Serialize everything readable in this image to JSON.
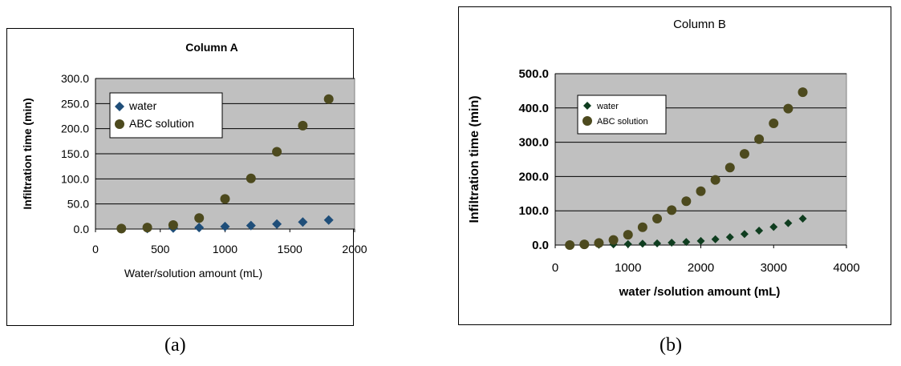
{
  "captions": [
    "(a)",
    "(b)"
  ],
  "chart_data": [
    {
      "type": "scatter",
      "title": "Column A",
      "xlabel": "Water/solution amount (mL)",
      "ylabel": "Infiltration time (min)",
      "xlim": [
        0,
        2000
      ],
      "ylim": [
        0,
        300
      ],
      "x_ticks": [
        "0",
        "500",
        "1000",
        "1500",
        "2000"
      ],
      "y_ticks": [
        "0.0",
        "50.0",
        "100.0",
        "150.0",
        "200.0",
        "250.0",
        "300.0"
      ],
      "grid": true,
      "legend_position": "upper-left",
      "plot_background": "#c0c0c0",
      "series": [
        {
          "name": "water",
          "marker": "diamond",
          "color": "#1f4e79",
          "x": [
            200,
            400,
            600,
            800,
            1000,
            1200,
            1400,
            1600,
            1800
          ],
          "y": [
            0.5,
            1,
            2,
            3,
            5,
            7,
            10,
            14,
            18
          ]
        },
        {
          "name": "ABC solution",
          "marker": "circle",
          "color": "#4d4a1e",
          "x": [
            200,
            400,
            600,
            800,
            1000,
            1200,
            1400,
            1600,
            1800
          ],
          "y": [
            1,
            3,
            8,
            22,
            60,
            101,
            154,
            206,
            259
          ]
        }
      ]
    },
    {
      "type": "scatter",
      "title": "Column B",
      "xlabel": "water /solution amount (mL)",
      "ylabel": "Infiltration time (min)",
      "xlim": [
        0,
        4000
      ],
      "ylim": [
        0,
        500
      ],
      "x_ticks": [
        "0",
        "1000",
        "2000",
        "3000",
        "4000"
      ],
      "y_ticks": [
        "0.0",
        "100.0",
        "200.0",
        "300.0",
        "400.0",
        "500.0"
      ],
      "grid": true,
      "legend_position": "upper-left",
      "plot_background": "#c0c0c0",
      "series": [
        {
          "name": "water",
          "marker": "diamond",
          "color": "#0f3d1f",
          "x": [
            200,
            400,
            600,
            800,
            1000,
            1200,
            1400,
            1600,
            1800,
            2000,
            2200,
            2400,
            2600,
            2800,
            3000,
            3200,
            3400
          ],
          "y": [
            0,
            0.5,
            1,
            2,
            3,
            4,
            5,
            7,
            9,
            12,
            17,
            23,
            32,
            42,
            53,
            64,
            77
          ]
        },
        {
          "name": "ABC solution",
          "marker": "circle",
          "color": "#4d4a1e",
          "x": [
            200,
            400,
            600,
            800,
            1000,
            1200,
            1400,
            1600,
            1800,
            2000,
            2200,
            2400,
            2600,
            2800,
            3000,
            3200,
            3400
          ],
          "y": [
            0,
            2,
            6,
            15,
            30,
            52,
            77,
            102,
            128,
            157,
            190,
            226,
            266,
            309,
            355,
            398,
            446
          ]
        }
      ]
    }
  ]
}
